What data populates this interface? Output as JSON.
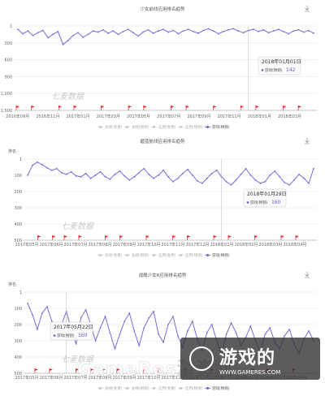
{
  "chart_data": [
    {
      "type": "line",
      "title": "少女前线应用排名趋势",
      "ylabel": "",
      "y_ticks": [
        "1",
        "300",
        "600",
        "900",
        "1,200",
        "1,500"
      ],
      "ylim": [
        1,
        1500
      ],
      "y_inverted": true,
      "x_ticks": [
        "2016年09月",
        "2016年11月",
        "2017年01月",
        "2017年03月",
        "2017年05月",
        "2017年07月",
        "2017年09月",
        "2017年11月",
        "2018年01月",
        "2018年03月"
      ],
      "legend": [
        "总榜(免费)",
        "总榜(畅销)",
        "应用(免费)",
        "应用(畅销)",
        "游戏(畅销)"
      ],
      "active_series": "游戏(畅销)",
      "series": [
        {
          "name": "游戏(畅销)",
          "values": [
            60,
            140,
            90,
            170,
            120,
            80,
            210,
            150,
            100,
            330,
            260,
            170,
            120,
            200,
            150,
            90,
            110,
            70,
            130,
            90,
            150,
            100,
            60,
            120,
            180,
            110,
            70,
            130,
            90,
            60,
            110,
            80,
            140,
            90,
            60,
            100,
            130,
            80,
            50,
            90,
            140,
            100,
            70,
            50,
            90,
            120,
            80,
            60,
            100,
            70,
            120,
            90,
            60,
            100,
            140,
            90,
            70,
            110,
            80,
            130
          ]
        }
      ],
      "tooltip": {
        "date": "2018年01月01日",
        "series": "游戏(畅销)",
        "value": "142"
      },
      "watermark": "七麦数据"
    },
    {
      "type": "line",
      "title": "碧蓝航线应用排名趋势",
      "ylabel": "排名",
      "y_ticks": [
        "1",
        "100",
        "200",
        "300",
        "400",
        "500"
      ],
      "ylim": [
        1,
        500
      ],
      "y_inverted": true,
      "x_ticks": [
        "2017年05月",
        "2017年06月",
        "2017年07月",
        "2017年08月",
        "2017年09月",
        "2017年10月",
        "2017年11月",
        "2017年12月",
        "2018年01月",
        "2018年02月",
        "2018年03月",
        "2018年04月"
      ],
      "legend": [
        "总榜(免费)",
        "总榜(畅销)",
        "应用(免费)",
        "应用(畅销)",
        "游戏(畅销)"
      ],
      "active_series": "游戏(畅销)",
      "series": [
        {
          "name": "游戏(畅销)",
          "values": [
            100,
            40,
            20,
            35,
            55,
            70,
            60,
            85,
            95,
            80,
            105,
            110,
            90,
            120,
            100,
            80,
            110,
            125,
            95,
            75,
            105,
            130,
            110,
            85,
            60,
            95,
            120,
            100,
            70,
            110,
            140,
            120,
            90,
            65,
            100,
            135,
            150,
            120,
            90,
            70,
            110,
            140,
            160,
            130,
            95,
            60,
            100,
            130,
            150,
            140,
            100,
            75,
            110,
            145,
            160,
            130,
            95,
            120,
            150,
            60
          ]
        }
      ],
      "tooltip": {
        "date": "2018年01月29日",
        "series": "游戏(畅销)",
        "value": "160"
      },
      "watermark": "七麦数据"
    },
    {
      "type": "line",
      "title": "战舰少女R应用排名趋势",
      "ylabel": "排名",
      "y_ticks": [
        "1",
        "100",
        "200",
        "300",
        "400",
        "500"
      ],
      "ylim": [
        1,
        500
      ],
      "y_inverted": true,
      "x_ticks": [
        "2017年05月",
        "2017年06月",
        "2017年07月",
        "2017年08月",
        "2017年09月",
        "2017年10月",
        "2017年11月",
        "2017年12月",
        "2018年01月",
        "2018年02月",
        "2018年03月",
        "2018年04月"
      ],
      "legend": [
        "总榜(免费)",
        "总榜(畅销)",
        "应用(免费)",
        "应用(畅销)",
        "游戏(畅销)"
      ],
      "active_series": "游戏(畅销)",
      "series": [
        {
          "name": "游戏(畅销)",
          "values": [
            70,
            140,
            230,
            130,
            90,
            180,
            280,
            200,
            120,
            230,
            320,
            160,
            110,
            200,
            300,
            220,
            150,
            250,
            350,
            260,
            180,
            130,
            240,
            330,
            220,
            160,
            120,
            260,
            310,
            200,
            150,
            270,
            340,
            240,
            180,
            290,
            360,
            250,
            200,
            300,
            380,
            260,
            190,
            250,
            330,
            280,
            210,
            300,
            370,
            260,
            220,
            310,
            350,
            270,
            230,
            320,
            380,
            290,
            240,
            300
          ]
        }
      ],
      "tooltip": {
        "date": "2017年05月22日",
        "series": "游戏(畅销)",
        "value": "160"
      },
      "watermark": "七麦数据"
    }
  ],
  "brand": {
    "logo_text": "GameRes游资网",
    "cn_text": "游戏的",
    "en_text": "WWW.GAMERES.COM"
  }
}
